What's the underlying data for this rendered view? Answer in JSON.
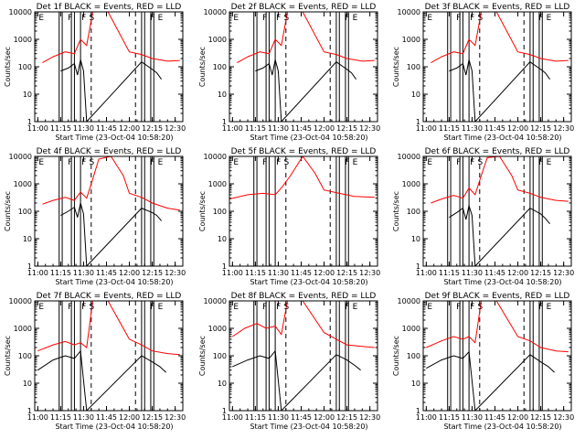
{
  "figure": {
    "x_axis_label": "Start Time (23-Oct-04 10:58:20)",
    "y_axis_label": "Counts/sec",
    "x_tick_labels": [
      "11:00",
      "11:15",
      "11:30",
      "11:45",
      "12:00",
      "12:15",
      "12:30"
    ],
    "y_tick_labels": [
      "1",
      "10",
      "100",
      "1000",
      "10000"
    ],
    "colors": {
      "events": "#000000",
      "lld": "#ff0000",
      "axis": "#000000"
    }
  },
  "chart_data": [
    {
      "type": "line",
      "title": "Det 1f BLACK = Events, RED = LLD",
      "xlabel": "Start Time (23-Oct-04 10:58:20)",
      "ylabel": "Counts/sec",
      "xlim": [
        "10:58",
        "12:35"
      ],
      "ylim": [
        1,
        10000
      ],
      "yscale": "log",
      "markers": [
        {
          "time": "11:00",
          "label": "E"
        },
        {
          "time": "11:19",
          "label": "F"
        },
        {
          "time": "11:28",
          "label": "F"
        },
        {
          "time": "11:33",
          "label": "S"
        },
        {
          "time": "12:13",
          "label": "F"
        },
        {
          "time": "12:18",
          "label": "E"
        }
      ],
      "solid_lines": [
        "11:14",
        "11:16",
        "11:22",
        "11:24",
        "11:28",
        "12:08",
        "12:10",
        "12:14",
        "12:16"
      ],
      "dashed_lines": [
        "11:35",
        "12:04"
      ],
      "series": [
        {
          "name": "Events",
          "x": [
            "11:15",
            "11:20",
            "11:24",
            "11:26",
            "11:28",
            "11:30",
            "11:32",
            "12:08",
            "12:15",
            "12:18",
            "12:21"
          ],
          "y": [
            70,
            90,
            130,
            50,
            180,
            70,
            1,
            150,
            80,
            60,
            35
          ]
        },
        {
          "name": "LLD",
          "x": [
            "11:03",
            "11:10",
            "11:18",
            "11:24",
            "11:28",
            "11:32",
            "11:36",
            "11:46",
            "12:00",
            "12:08",
            "12:15",
            "12:25",
            "12:33"
          ],
          "y": [
            140,
            230,
            350,
            300,
            1000,
            600,
            10000,
            10000,
            350,
            280,
            200,
            160,
            170
          ]
        }
      ]
    },
    {
      "type": "line",
      "title": "Det 2f BLACK = Events, RED = LLD",
      "xlabel": "Start Time (23-Oct-04 10:58:20)",
      "ylabel": "Counts/sec",
      "xlim": [
        "10:58",
        "12:35"
      ],
      "ylim": [
        1,
        10000
      ],
      "yscale": "log",
      "markers": [
        {
          "time": "11:00",
          "label": "E"
        },
        {
          "time": "11:19",
          "label": "F"
        },
        {
          "time": "11:28",
          "label": "F"
        },
        {
          "time": "11:33",
          "label": "S"
        },
        {
          "time": "12:13",
          "label": "F"
        },
        {
          "time": "12:18",
          "label": "E"
        }
      ],
      "solid_lines": [
        "11:14",
        "11:16",
        "11:22",
        "11:24",
        "11:28",
        "12:08",
        "12:10",
        "12:14",
        "12:16"
      ],
      "dashed_lines": [
        "11:35",
        "12:04"
      ],
      "series": [
        {
          "name": "Events",
          "x": [
            "11:15",
            "11:20",
            "11:24",
            "11:26",
            "11:28",
            "11:30",
            "11:32",
            "12:08",
            "12:15",
            "12:18",
            "12:21"
          ],
          "y": [
            70,
            90,
            130,
            50,
            180,
            70,
            1,
            150,
            80,
            60,
            35
          ]
        },
        {
          "name": "LLD",
          "x": [
            "11:03",
            "11:10",
            "11:18",
            "11:24",
            "11:28",
            "11:32",
            "11:36",
            "11:46",
            "12:00",
            "12:08",
            "12:15",
            "12:25",
            "12:33"
          ],
          "y": [
            140,
            230,
            350,
            300,
            1000,
            600,
            10000,
            10000,
            350,
            280,
            200,
            160,
            170
          ]
        }
      ]
    },
    {
      "type": "line",
      "title": "Det 3f BLACK = Events, RED = LLD",
      "xlabel": "Start Time (23-Oct-04 10:58:20)",
      "ylabel": "Counts/sec",
      "xlim": [
        "10:58",
        "12:35"
      ],
      "ylim": [
        1,
        10000
      ],
      "yscale": "log",
      "markers": [
        {
          "time": "11:00",
          "label": "E"
        },
        {
          "time": "11:19",
          "label": "F"
        },
        {
          "time": "11:28",
          "label": "F"
        },
        {
          "time": "11:33",
          "label": "S"
        },
        {
          "time": "12:13",
          "label": "F"
        },
        {
          "time": "12:18",
          "label": "E"
        }
      ],
      "solid_lines": [
        "11:14",
        "11:16",
        "11:22",
        "11:24",
        "11:28",
        "12:08",
        "12:10",
        "12:14",
        "12:16"
      ],
      "dashed_lines": [
        "11:35",
        "12:04"
      ],
      "series": [
        {
          "name": "Events",
          "x": [
            "11:15",
            "11:20",
            "11:24",
            "11:26",
            "11:28",
            "11:30",
            "11:32",
            "12:08",
            "12:15",
            "12:18",
            "12:21"
          ],
          "y": [
            70,
            90,
            130,
            50,
            180,
            70,
            1,
            150,
            80,
            60,
            35
          ]
        },
        {
          "name": "LLD",
          "x": [
            "11:03",
            "11:10",
            "11:18",
            "11:24",
            "11:28",
            "11:32",
            "11:36",
            "11:46",
            "12:00",
            "12:08",
            "12:15",
            "12:25",
            "12:33"
          ],
          "y": [
            140,
            230,
            350,
            300,
            1000,
            600,
            10000,
            10000,
            350,
            280,
            200,
            160,
            170
          ]
        }
      ]
    },
    {
      "type": "line",
      "title": "Det 4f BLACK = Events, RED = LLD",
      "xlabel": "Start Time (23-Oct-04 10:58:20)",
      "ylabel": "Counts/sec",
      "xlim": [
        "10:58",
        "12:35"
      ],
      "ylim": [
        1,
        10000
      ],
      "yscale": "log",
      "markers": [
        {
          "time": "11:00",
          "label": "E"
        },
        {
          "time": "11:19",
          "label": "F"
        },
        {
          "time": "11:28",
          "label": "F"
        },
        {
          "time": "11:33",
          "label": "S"
        },
        {
          "time": "12:13",
          "label": "F"
        },
        {
          "time": "12:18",
          "label": "E"
        }
      ],
      "solid_lines": [
        "11:14",
        "11:16",
        "11:22",
        "11:24",
        "11:28",
        "12:08",
        "12:10",
        "12:14",
        "12:16"
      ],
      "dashed_lines": [
        "11:35",
        "12:04"
      ],
      "series": [
        {
          "name": "Events",
          "x": [
            "11:15",
            "11:20",
            "11:24",
            "11:26",
            "11:28",
            "11:30",
            "11:32",
            "12:08",
            "12:15",
            "12:18",
            "12:21"
          ],
          "y": [
            70,
            100,
            140,
            60,
            200,
            80,
            1,
            130,
            90,
            70,
            45
          ]
        },
        {
          "name": "LLD",
          "x": [
            "11:03",
            "11:10",
            "11:18",
            "11:24",
            "11:28",
            "11:32",
            "11:36",
            "11:40",
            "11:48",
            "11:56",
            "12:00",
            "12:08",
            "12:15",
            "12:25",
            "12:33"
          ],
          "y": [
            180,
            250,
            320,
            250,
            500,
            300,
            1500,
            8000,
            10000,
            2000,
            450,
            320,
            200,
            130,
            110
          ]
        }
      ]
    },
    {
      "type": "line",
      "title": "Det 5f BLACK = Events, RED = LLD",
      "xlabel": "Start Time (23-Oct-04 10:58:20)",
      "ylabel": "Counts/sec",
      "xlim": [
        "10:58",
        "12:35"
      ],
      "ylim": [
        1,
        10000
      ],
      "yscale": "log",
      "markers": [
        {
          "time": "11:00",
          "label": "E"
        },
        {
          "time": "11:19",
          "label": "F"
        },
        {
          "time": "11:28",
          "label": "F"
        },
        {
          "time": "11:33",
          "label": "S"
        },
        {
          "time": "12:13",
          "label": "F"
        },
        {
          "time": "12:18",
          "label": "E"
        }
      ],
      "solid_lines": [
        "11:14",
        "11:16",
        "11:22",
        "11:24",
        "11:28",
        "12:08",
        "12:10",
        "12:14",
        "12:16"
      ],
      "dashed_lines": [
        "11:35",
        "12:04"
      ],
      "series": [
        {
          "name": "LLD",
          "x": [
            "10:58",
            "11:10",
            "11:20",
            "11:28",
            "11:32",
            "11:38",
            "11:46",
            "11:54",
            "12:00",
            "12:10",
            "12:20",
            "12:33"
          ],
          "y": [
            280,
            400,
            450,
            400,
            700,
            2000,
            10000,
            2500,
            600,
            450,
            350,
            320
          ]
        }
      ]
    },
    {
      "type": "line",
      "title": "Det 6f BLACK = Events, RED = LLD",
      "xlabel": "Start Time (23-Oct-04 10:58:20)",
      "ylabel": "Counts/sec",
      "xlim": [
        "10:58",
        "12:35"
      ],
      "ylim": [
        1,
        10000
      ],
      "yscale": "log",
      "markers": [
        {
          "time": "11:00",
          "label": "E"
        },
        {
          "time": "11:19",
          "label": "F"
        },
        {
          "time": "11:28",
          "label": "F"
        },
        {
          "time": "11:33",
          "label": "S"
        },
        {
          "time": "12:13",
          "label": "F"
        },
        {
          "time": "12:18",
          "label": "E"
        }
      ],
      "solid_lines": [
        "11:14",
        "11:16",
        "11:22",
        "11:24",
        "11:28",
        "12:08",
        "12:10",
        "12:14",
        "12:16"
      ],
      "dashed_lines": [
        "11:35",
        "12:04"
      ],
      "series": [
        {
          "name": "Events",
          "x": [
            "11:15",
            "11:20",
            "11:24",
            "11:26",
            "11:28",
            "11:30",
            "11:32",
            "12:08",
            "12:15",
            "12:18",
            "12:21"
          ],
          "y": [
            60,
            90,
            130,
            50,
            160,
            70,
            1,
            130,
            80,
            55,
            35
          ]
        },
        {
          "name": "LLD",
          "x": [
            "11:03",
            "11:10",
            "11:18",
            "11:24",
            "11:28",
            "11:32",
            "11:36",
            "11:40",
            "11:48",
            "11:56",
            "12:00",
            "12:08",
            "12:15",
            "12:25",
            "12:33"
          ],
          "y": [
            200,
            280,
            380,
            300,
            700,
            400,
            2000,
            9000,
            10000,
            2000,
            600,
            450,
            320,
            250,
            230
          ]
        }
      ]
    },
    {
      "type": "line",
      "title": "Det 7f BLACK = Events, RED = LLD",
      "xlabel": "Start Time (23-Oct-04 10:58:20)",
      "ylabel": "Counts/sec",
      "xlim": [
        "10:58",
        "12:35"
      ],
      "ylim": [
        1,
        10000
      ],
      "yscale": "log",
      "markers": [
        {
          "time": "11:00",
          "label": "E"
        },
        {
          "time": "11:19",
          "label": "F"
        },
        {
          "time": "11:28",
          "label": "F"
        },
        {
          "time": "11:33",
          "label": "S"
        },
        {
          "time": "12:13",
          "label": "F"
        },
        {
          "time": "12:18",
          "label": "E"
        }
      ],
      "solid_lines": [
        "11:14",
        "11:16",
        "11:22",
        "11:24",
        "11:28",
        "12:08",
        "12:10",
        "12:14",
        "12:16"
      ],
      "dashed_lines": [
        "11:35",
        "12:04"
      ],
      "series": [
        {
          "name": "Events",
          "x": [
            "11:00",
            "11:10",
            "11:18",
            "11:24",
            "11:28",
            "11:32",
            "12:08",
            "12:15",
            "12:20",
            "12:24"
          ],
          "y": [
            30,
            70,
            100,
            80,
            150,
            1,
            100,
            60,
            40,
            25
          ]
        },
        {
          "name": "LLD",
          "x": [
            "11:00",
            "11:10",
            "11:18",
            "11:24",
            "11:28",
            "11:32",
            "11:36",
            "11:46",
            "12:00",
            "12:08",
            "12:15",
            "12:25",
            "12:33"
          ],
          "y": [
            150,
            250,
            330,
            250,
            300,
            200,
            10000,
            10000,
            400,
            250,
            150,
            120,
            110
          ]
        }
      ]
    },
    {
      "type": "line",
      "title": "Det 8f BLACK = Events, RED = LLD",
      "xlabel": "Start Time (23-Oct-04 10:58:20)",
      "ylabel": "Counts/sec",
      "xlim": [
        "10:58",
        "12:35"
      ],
      "ylim": [
        1,
        10000
      ],
      "yscale": "log",
      "markers": [
        {
          "time": "11:00",
          "label": "E"
        },
        {
          "time": "11:19",
          "label": "F"
        },
        {
          "time": "11:28",
          "label": "F"
        },
        {
          "time": "11:33",
          "label": "S"
        },
        {
          "time": "12:13",
          "label": "F"
        },
        {
          "time": "12:18",
          "label": "E"
        }
      ],
      "solid_lines": [
        "11:14",
        "11:16",
        "11:22",
        "11:24",
        "11:28",
        "12:08",
        "12:10",
        "12:14",
        "12:16"
      ],
      "dashed_lines": [
        "11:35",
        "12:04"
      ],
      "series": [
        {
          "name": "Events",
          "x": [
            "11:00",
            "11:10",
            "11:18",
            "11:24",
            "11:28",
            "11:32",
            "12:08",
            "12:15",
            "12:20",
            "12:24"
          ],
          "y": [
            40,
            70,
            100,
            80,
            150,
            1,
            110,
            70,
            45,
            30
          ]
        },
        {
          "name": "LLD",
          "x": [
            "11:00",
            "11:08",
            "11:16",
            "11:22",
            "11:28",
            "11:32",
            "11:36",
            "11:46",
            "12:00",
            "12:08",
            "12:15",
            "12:25",
            "12:33"
          ],
          "y": [
            500,
            1000,
            1500,
            1000,
            1200,
            600,
            10000,
            10000,
            700,
            400,
            250,
            220,
            200
          ]
        }
      ]
    },
    {
      "type": "line",
      "title": "Det 9f BLACK = Events, RED = LLD",
      "xlabel": "Start Time (23-Oct-04 10:58:20)",
      "ylabel": "Counts/sec",
      "xlim": [
        "10:58",
        "12:35"
      ],
      "ylim": [
        1,
        10000
      ],
      "yscale": "log",
      "markers": [
        {
          "time": "11:00",
          "label": "E"
        },
        {
          "time": "11:19",
          "label": "F"
        },
        {
          "time": "11:28",
          "label": "F"
        },
        {
          "time": "11:33",
          "label": "S"
        },
        {
          "time": "12:13",
          "label": "F"
        },
        {
          "time": "12:18",
          "label": "E"
        }
      ],
      "solid_lines": [
        "11:14",
        "11:16",
        "11:22",
        "11:24",
        "11:28",
        "12:08",
        "12:10",
        "12:14",
        "12:16"
      ],
      "dashed_lines": [
        "11:35",
        "12:04"
      ],
      "series": [
        {
          "name": "Events",
          "x": [
            "11:00",
            "11:10",
            "11:18",
            "11:24",
            "11:28",
            "11:32",
            "12:08",
            "12:15",
            "12:20",
            "12:24"
          ],
          "y": [
            35,
            70,
            100,
            80,
            140,
            1,
            110,
            60,
            40,
            25
          ]
        },
        {
          "name": "LLD",
          "x": [
            "11:00",
            "11:10",
            "11:18",
            "11:24",
            "11:28",
            "11:32",
            "11:36",
            "11:46",
            "12:00",
            "12:08",
            "12:15",
            "12:25",
            "12:33"
          ],
          "y": [
            200,
            350,
            500,
            400,
            500,
            300,
            10000,
            10000,
            500,
            350,
            200,
            150,
            140
          ]
        }
      ]
    }
  ]
}
